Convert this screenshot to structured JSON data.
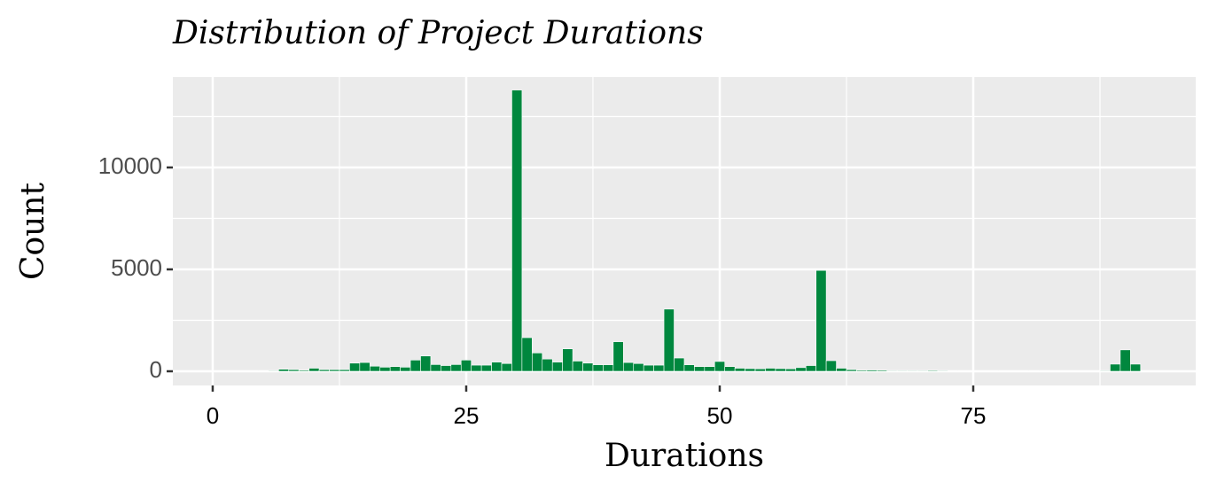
{
  "chart_data": {
    "type": "histogram",
    "title": "Distribution of Project Durations",
    "x_label": "Durations",
    "y_label": "Count",
    "color": "#00873e",
    "bins": [
      0.5,
      1.5,
      2.5,
      3.5,
      4.5,
      5.5,
      6.5,
      7.5,
      8.5,
      9.5,
      10.5,
      11.5,
      12.5,
      13.5,
      14.5,
      15.5,
      16.5,
      17.5,
      18.5,
      19.5,
      20.5,
      21.5,
      22.5,
      23.5,
      24.5,
      25.5,
      26.5,
      27.5,
      28.5,
      29.5,
      30.5,
      31.5,
      32.5,
      33.5,
      34.5,
      35.5,
      36.5,
      37.5,
      38.5,
      39.5,
      40.5,
      41.5,
      42.5,
      43.5,
      44.5,
      45.5,
      46.5,
      47.5,
      48.5,
      49.5,
      50.5,
      51.5,
      52.5,
      53.5,
      54.5,
      55.5,
      56.5,
      57.5,
      58.5,
      59.5,
      60.5,
      61.5,
      62.5,
      63.5,
      64.5,
      65.5,
      66.5,
      67.5,
      68.5,
      69.5,
      70.5,
      71.5,
      72.5,
      73.5,
      74.5,
      75.5,
      76.5,
      77.5,
      78.5,
      79.5,
      80.5,
      81.5,
      82.5,
      83.5,
      84.5,
      85.5,
      86.5,
      87.5,
      88.5,
      89.5,
      90.5,
      91.5
    ],
    "values": [
      0,
      0,
      0,
      0,
      20,
      30,
      100,
      80,
      50,
      150,
      80,
      80,
      80,
      400,
      430,
      250,
      200,
      230,
      200,
      550,
      750,
      330,
      280,
      330,
      550,
      300,
      300,
      450,
      380,
      13800,
      1650,
      900,
      600,
      450,
      1100,
      500,
      400,
      320,
      320,
      1450,
      430,
      380,
      300,
      300,
      3050,
      650,
      320,
      230,
      230,
      480,
      230,
      150,
      130,
      120,
      150,
      130,
      120,
      180,
      280,
      4950,
      520,
      150,
      80,
      50,
      60,
      50,
      30,
      30,
      30,
      30,
      40,
      30,
      20,
      20,
      0,
      20,
      20,
      0,
      20,
      0,
      20,
      20,
      20,
      0,
      20,
      20,
      20,
      30,
      350,
      1050,
      350
    ],
    "xlim": [
      -3.93,
      96.94
    ],
    "ylim": [
      -696,
      14435
    ],
    "xticks": [
      0,
      25,
      50,
      75
    ],
    "yticks": [
      0,
      5000,
      10000
    ],
    "x_minor_ticks": [
      12.5,
      37.5,
      62.5,
      87.5
    ],
    "y_minor_ticks": [
      2500,
      7500,
      12500
    ],
    "grid": true
  }
}
